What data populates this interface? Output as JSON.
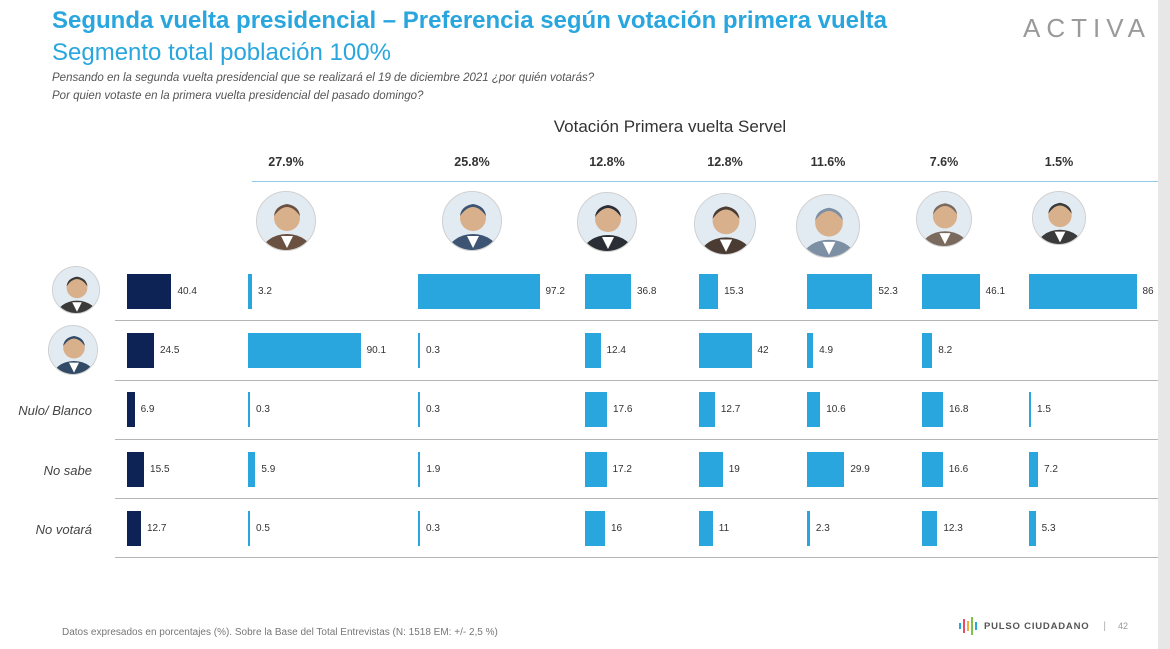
{
  "header": {
    "title": "Segunda vuelta presidencial – Preferencia según votación primera vuelta",
    "subtitle": "Segmento total población 100%",
    "question1": "Pensando en la segunda vuelta presidencial que se realizará el 19 de diciembre 2021 ¿por quién votarás?",
    "question2": "Por quien votaste en la primera vuelta presidencial del pasado domingo?",
    "logo": "ACTIVA"
  },
  "colors": {
    "title": "#29a6de",
    "total_bar": "#0d2356",
    "segment_bar": "#29a6de"
  },
  "chart_data": {
    "type": "bar",
    "title": "Votación Primera vuelta Servel",
    "columns": [
      {
        "id": "total",
        "header": "",
        "icon": ""
      },
      {
        "id": "c1",
        "header": "27.9%",
        "icon": "candidate-portrait-icon"
      },
      {
        "id": "c2",
        "header": "25.8%",
        "icon": "candidate-portrait-icon"
      },
      {
        "id": "c3",
        "header": "12.8%",
        "icon": "candidate-portrait-icon"
      },
      {
        "id": "c4",
        "header": "12.8%",
        "icon": "candidate-portrait-icon"
      },
      {
        "id": "c5",
        "header": "11.6%",
        "icon": "candidate-portrait-icon"
      },
      {
        "id": "c6",
        "header": "7.6%",
        "icon": "candidate-portrait-icon"
      },
      {
        "id": "c7",
        "header": "1.5%",
        "icon": "candidate-portrait-icon"
      }
    ],
    "rows": [
      {
        "label": "",
        "icon": "candidate-portrait-icon",
        "values": [
          "40.4",
          "3.2",
          "97.2",
          "36.8",
          "15.3",
          "52.3",
          "46.1",
          "86"
        ]
      },
      {
        "label": "",
        "icon": "candidate-portrait-icon",
        "values": [
          "24.5",
          "90.1",
          "0.3",
          "12.4",
          "42",
          "4.9",
          "8.2",
          ""
        ]
      },
      {
        "label": "Nulo/ Blanco",
        "icon": "",
        "values": [
          "6.9",
          "0.3",
          "0.3",
          "17.6",
          "12.7",
          "10.6",
          "16.8",
          "1.5"
        ]
      },
      {
        "label": "No sabe",
        "icon": "",
        "values": [
          "15.5",
          "5.9",
          "1.9",
          "17.2",
          "19",
          "29.9",
          "16.6",
          "7.2"
        ]
      },
      {
        "label": "No votará",
        "icon": "",
        "values": [
          "12.7",
          "0.5",
          "0.3",
          "16",
          "11",
          "2.3",
          "12.3",
          "5.3"
        ]
      }
    ],
    "unit": "%"
  },
  "footer": {
    "note": "Datos expresados en porcentajes (%). Sobre la Base del Total Entrevistas (N: 1518  EM: +/- 2,5 %)",
    "brand": "PULSO CIUDADANO",
    "separator": "|",
    "page": "42"
  }
}
